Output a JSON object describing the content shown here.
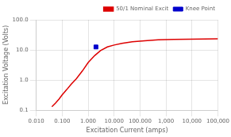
{
  "chart_data": {
    "type": "line",
    "xlabel": "Excitation Current (amps)",
    "ylabel": "Excitation Voltage (Volts)",
    "log": true,
    "xlim": [
      0.01,
      100000.0
    ],
    "ylim": [
      0.1,
      100.0
    ],
    "xticks": [
      {
        "value": 0.01,
        "label": "0.010"
      },
      {
        "value": 0.1,
        "label": "0.100"
      },
      {
        "value": 1.0,
        "label": "1.000"
      },
      {
        "value": 10.0,
        "label": "10.000"
      },
      {
        "value": 100.0,
        "label": "100.000"
      },
      {
        "value": 1000.0,
        "label": "1,000"
      },
      {
        "value": 10000.0,
        "label": "10,000"
      },
      {
        "value": 100000.0,
        "label": "100,000"
      }
    ],
    "yticks": [
      0.1,
      {
        "value": 1.0,
        "label": "1.0"
      },
      {
        "value": 10.0,
        "label": "10.0"
      },
      {
        "value": 100.0,
        "label": "100.0"
      }
    ],
    "grid": true,
    "legend": "upper right",
    "series": [
      {
        "name": "50/1 Nominal Excit",
        "color": "#dd0000",
        "marker": "none",
        "line_style": "solid",
        "x": [
          0.04,
          0.055,
          0.075,
          0.1,
          0.15,
          0.22,
          0.35,
          0.6,
          1.0,
          1.8,
          3.0,
          5.5,
          10.0,
          20.0,
          50.0,
          150.0,
          500.0,
          2000.0,
          8000.0,
          30000.0,
          100000.0
        ],
        "values": [
          0.13,
          0.17,
          0.23,
          0.32,
          0.48,
          0.72,
          1.1,
          2.0,
          3.8,
          6.5,
          9.5,
          12.5,
          14.5,
          16.5,
          18.5,
          20.2,
          21.5,
          22.3,
          22.7,
          23.0,
          23.2
        ]
      },
      {
        "name": "Knee Point",
        "color": "#0000cc",
        "marker": "square",
        "line_style": "none",
        "x": [
          2.0
        ],
        "values": [
          12.5
        ]
      }
    ]
  }
}
